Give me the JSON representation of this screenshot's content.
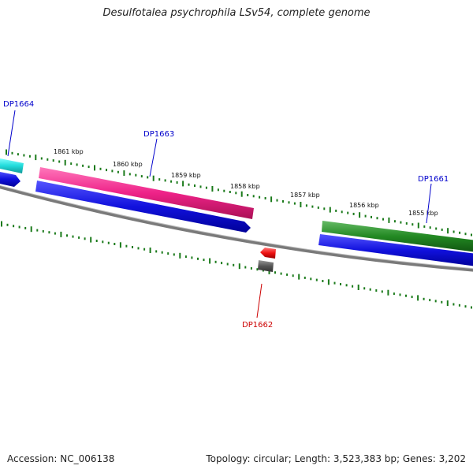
{
  "title": "Desulfotalea psychrophila LSv54, complete genome",
  "footer": {
    "accession": "Accession: NC_006138",
    "summary": "Topology: circular; Length: 3,523,383 bp; Genes: 3,202"
  },
  "kbp_labels": [
    "1861 kbp",
    "1860 kbp",
    "1859 kbp",
    "1858 kbp",
    "1857 kbp",
    "1856 kbp",
    "1855 kbp"
  ],
  "genes": {
    "dp1664": "DP1664",
    "dp1663": "DP1663",
    "dp1662": "DP1662",
    "dp1661": "DP1661"
  },
  "colors": {
    "tick": "#1a7a1a",
    "backbone": "#7a7a7a",
    "gene_label_forward": "#0000cc",
    "gene_label_reverse": "#cc0000",
    "cyan": "#22dddd",
    "magenta": "#ee2288",
    "blue": "#1111dd",
    "green": "#228822",
    "red": "#ee1111",
    "grey": "#555555"
  }
}
